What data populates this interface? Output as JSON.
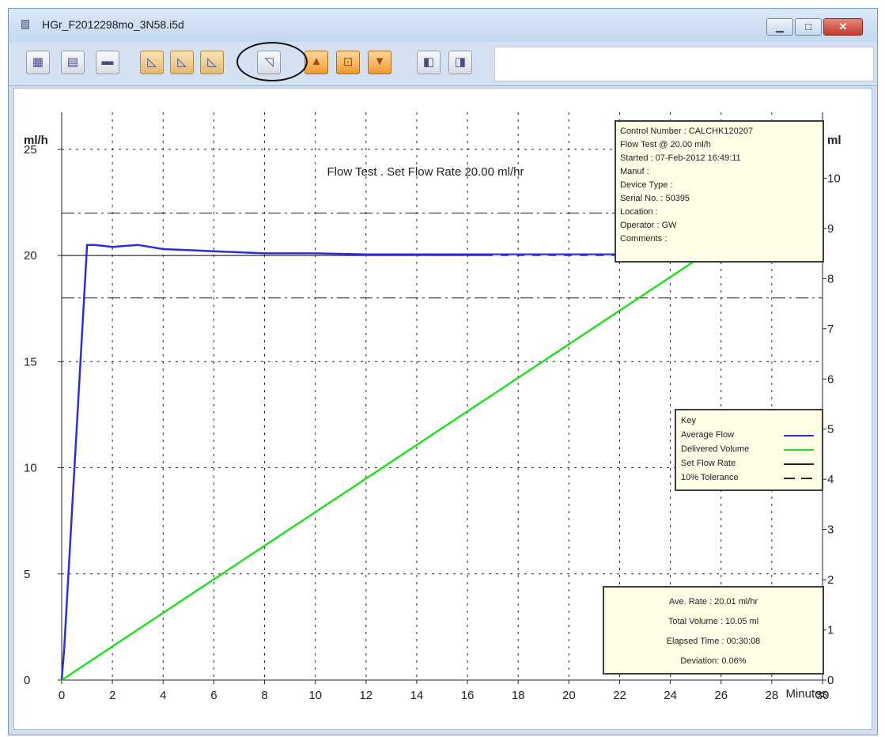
{
  "window": {
    "title": "HGr_F2012298mo_3N58.i5d",
    "controls": {
      "minimize": "▁",
      "maximize": "□",
      "close": "✕"
    }
  },
  "toolbar": {
    "buttons": [
      {
        "name": "calendar-icon",
        "glyph": "▦"
      },
      {
        "name": "print-preview-icon",
        "glyph": "▤"
      },
      {
        "name": "printer-icon",
        "glyph": "▬"
      },
      {
        "name": "chart-view-1-icon",
        "glyph": "◺"
      },
      {
        "name": "chart-view-2-icon",
        "glyph": "◺"
      },
      {
        "name": "chart-view-3-icon",
        "glyph": "◺"
      },
      {
        "name": "chart-view-4-icon",
        "glyph": "◹"
      },
      {
        "name": "zoom-up-icon",
        "glyph": "▲"
      },
      {
        "name": "zoom-fit-icon",
        "glyph": "⊡"
      },
      {
        "name": "zoom-down-icon",
        "glyph": "▼"
      },
      {
        "name": "page-prev-icon",
        "glyph": "◧"
      },
      {
        "name": "page-next-icon",
        "glyph": "◨"
      }
    ]
  },
  "info": {
    "lines": [
      "Control Number   :  CALCHK120207",
      "Flow Test @ 20.00 ml/h",
      "Started : 07-Feb-2012  16:49:11",
      "Manuf :",
      "Device Type :",
      "Serial No. : 50395",
      "Location :",
      "Operator : GW",
      "Comments :"
    ]
  },
  "key": {
    "title": "Key",
    "entries": [
      {
        "label": "Average Flow",
        "color": "#2e2ed6"
      },
      {
        "label": "Delivered Volume",
        "color": "#22dd22"
      },
      {
        "label": "Set Flow Rate",
        "color": "#222222"
      },
      {
        "label": "10% Tolerance",
        "color": "#222222"
      }
    ]
  },
  "stats": {
    "lines": [
      "Ave. Rate : 20.01 ml/hr",
      "Total Volume : 10.05 ml",
      "Elapsed Time : 00:30:08",
      "Deviation:  0.06%"
    ]
  },
  "chart_data": {
    "type": "line",
    "title": "Flow Test . Set Flow Rate 20.00 ml/hr",
    "xlabel": "Minutes",
    "ylabel_left": "ml/h",
    "ylabel_right": "ml",
    "xlim": [
      0,
      30
    ],
    "ylim_left": [
      0,
      26
    ],
    "ylim_right": [
      0,
      11
    ],
    "x_ticks": [
      "0",
      "2",
      "4",
      "6",
      "8",
      "10",
      "12",
      "14",
      "16",
      "18",
      "20",
      "22",
      "24",
      "26",
      "28",
      "30"
    ],
    "y_left_ticks": [
      {
        "v": 0,
        "label": "0"
      },
      {
        "v": 5,
        "label": "5"
      },
      {
        "v": 10,
        "label": "10"
      },
      {
        "v": 15,
        "label": "15"
      },
      {
        "v": 20,
        "label": "20"
      },
      {
        "v": 25,
        "label": "25"
      }
    ],
    "y_right_ticks": [
      {
        "v": 0,
        "label": "0"
      },
      {
        "v": 1,
        "label": "1"
      },
      {
        "v": 2,
        "label": "2"
      },
      {
        "v": 3,
        "label": "3"
      },
      {
        "v": 4,
        "label": "4"
      },
      {
        "v": 5,
        "label": "5"
      },
      {
        "v": 6,
        "label": "6"
      },
      {
        "v": 7,
        "label": "7"
      },
      {
        "v": 8,
        "label": "8"
      },
      {
        "v": 9,
        "label": "9"
      },
      {
        "v": 10,
        "label": "10"
      }
    ],
    "grid": true,
    "set_flow_rate": 20,
    "tolerance": [
      18,
      22
    ],
    "series": [
      {
        "name": "Average Flow",
        "axis": "left",
        "color": "#2e2ed6",
        "x": [
          0,
          0.1,
          1.0,
          1.3,
          2.0,
          3.0,
          4.0,
          6.0,
          8.0,
          10,
          12,
          14,
          16,
          18,
          20,
          22,
          24,
          26,
          28,
          30
        ],
        "y": [
          0,
          1.5,
          20.5,
          20.5,
          20.4,
          20.5,
          20.3,
          20.2,
          20.1,
          20.1,
          20.05,
          20.05,
          20.05,
          20.05,
          20.05,
          20.05,
          20.05,
          20.05,
          20.05,
          20.05
        ]
      },
      {
        "name": "Delivered Volume",
        "axis": "right",
        "color": "#22dd22",
        "x": [
          0,
          26
        ],
        "y": [
          0,
          8.7
        ]
      }
    ]
  }
}
